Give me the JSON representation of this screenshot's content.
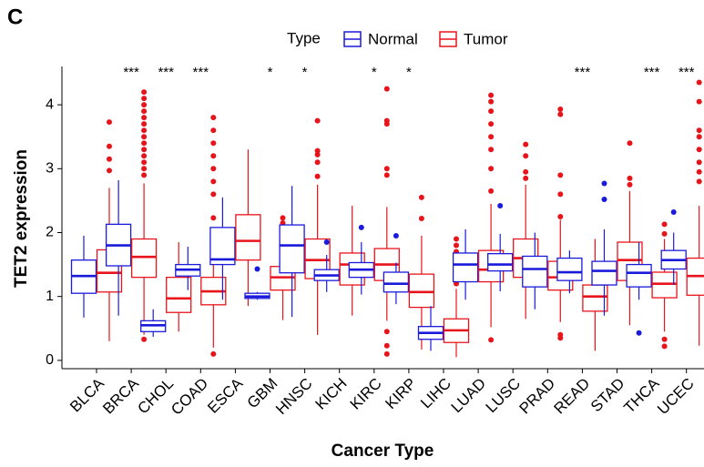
{
  "chart_data": {
    "type": "boxplot",
    "panel_label": "C",
    "x_label": "Cancer Type",
    "y_label": "TET2 expression",
    "legend_title": "Type",
    "categories": [
      "BLCA",
      "BRCA",
      "CHOL",
      "COAD",
      "ESCA",
      "GBM",
      "HNSC",
      "KICH",
      "KIRC",
      "KIRP",
      "LIHC",
      "LUAD",
      "LUSC",
      "PRAD",
      "READ",
      "STAD",
      "THCA",
      "UCEC"
    ],
    "significance": [
      null,
      "***",
      "***",
      "***",
      null,
      "*",
      "*",
      null,
      "*",
      "*",
      null,
      null,
      null,
      null,
      "***",
      null,
      "***",
      "***"
    ],
    "ylim": [
      -0.13,
      4.6
    ],
    "yticks": [
      0,
      1,
      2,
      3,
      4
    ],
    "series": [
      {
        "name": "Normal",
        "color": "#1a1adb",
        "q1": [
          1.05,
          1.48,
          0.45,
          1.32,
          1.5,
          0.97,
          1.37,
          1.25,
          1.3,
          1.07,
          0.33,
          1.23,
          1.4,
          1.15,
          1.25,
          1.18,
          1.15,
          1.43
        ],
        "median": [
          1.32,
          1.8,
          0.55,
          1.42,
          1.58,
          1.0,
          1.8,
          1.33,
          1.42,
          1.2,
          0.43,
          1.5,
          1.5,
          1.43,
          1.38,
          1.4,
          1.37,
          1.57
        ],
        "q3": [
          1.57,
          2.13,
          0.62,
          1.5,
          2.08,
          1.05,
          2.12,
          1.42,
          1.53,
          1.38,
          0.53,
          1.68,
          1.67,
          1.63,
          1.6,
          1.55,
          1.5,
          1.72
        ],
        "whisker_low": [
          0.67,
          0.7,
          0.37,
          1.1,
          0.95,
          0.95,
          0.68,
          1.07,
          1.03,
          0.88,
          0.15,
          0.95,
          1.08,
          0.8,
          1.05,
          0.7,
          0.95,
          1.18
        ],
        "whisker_high": [
          1.95,
          2.82,
          0.8,
          1.78,
          2.55,
          1.07,
          2.73,
          1.65,
          1.85,
          1.53,
          0.85,
          2.05,
          1.98,
          2.0,
          1.72,
          2.05,
          1.85,
          2.0
        ],
        "outliers": [
          [],
          [],
          [],
          [],
          [],
          [
            1.43
          ],
          [],
          [
            1.85
          ],
          [
            2.08
          ],
          [
            1.95
          ],
          [],
          [],
          [
            2.42
          ],
          [],
          [],
          [
            2.52,
            2.77
          ],
          [
            0.43
          ],
          [
            2.32
          ]
        ]
      },
      {
        "name": "Tumor",
        "color": "#e8141b",
        "q1": [
          1.07,
          1.3,
          0.75,
          0.87,
          1.57,
          1.1,
          1.28,
          1.18,
          1.25,
          0.83,
          0.28,
          1.23,
          1.3,
          1.1,
          0.77,
          1.25,
          0.98,
          1.02
        ],
        "median": [
          1.37,
          1.62,
          0.97,
          1.08,
          1.87,
          1.3,
          1.57,
          1.5,
          1.5,
          1.07,
          0.47,
          1.42,
          1.6,
          1.3,
          1.0,
          1.57,
          1.2,
          1.32
        ],
        "q3": [
          1.73,
          1.9,
          1.3,
          1.3,
          2.28,
          1.47,
          1.9,
          1.68,
          1.75,
          1.35,
          0.65,
          1.72,
          1.9,
          1.55,
          1.18,
          1.85,
          1.38,
          1.6
        ],
        "whisker_low": [
          0.3,
          0.4,
          0.45,
          0.2,
          0.85,
          0.63,
          0.4,
          0.7,
          0.62,
          0.17,
          0.05,
          0.52,
          0.65,
          0.6,
          0.15,
          0.55,
          0.45,
          0.23
        ],
        "whisker_high": [
          2.7,
          2.77,
          1.85,
          1.95,
          3.3,
          1.95,
          2.75,
          2.42,
          2.4,
          1.95,
          1.12,
          2.45,
          2.75,
          2.2,
          1.9,
          2.65,
          1.9,
          2.42
        ],
        "outliers": [
          [
            2.97,
            3.15,
            3.35,
            3.73
          ],
          [
            0.33,
            2.9,
            3.0,
            3.1,
            3.2,
            3.3,
            3.4,
            3.5,
            3.6,
            3.7,
            3.8,
            3.9,
            4.0,
            4.1,
            4.2
          ],
          [],
          [
            0.1,
            2.23,
            2.6,
            2.8,
            3.0,
            3.2,
            3.4,
            3.6,
            3.8
          ],
          [],
          [
            2.05,
            2.15,
            2.23
          ],
          [
            2.88,
            3.1,
            3.22,
            3.28,
            3.75
          ],
          [],
          [
            0.1,
            0.23,
            0.45,
            2.9,
            3.0,
            3.7,
            3.75,
            4.25
          ],
          [
            2.22,
            2.55
          ],
          [
            1.2,
            1.3,
            1.4,
            1.5,
            1.6,
            1.7,
            1.8,
            1.9
          ],
          [
            0.32,
            2.65,
            3.0,
            3.3,
            3.5,
            3.7,
            3.9,
            4.05,
            4.15
          ],
          [
            2.85,
            2.95,
            3.2,
            3.38
          ],
          [
            0.35,
            0.4,
            2.25,
            2.6,
            2.9,
            3.85,
            3.93
          ],
          [],
          [
            2.75,
            2.85,
            3.4
          ],
          [
            0.22,
            0.33,
            1.98,
            2.13
          ],
          [
            2.8,
            2.95,
            3.1,
            3.3,
            3.5,
            3.6,
            4.05,
            4.35
          ]
        ]
      }
    ]
  }
}
